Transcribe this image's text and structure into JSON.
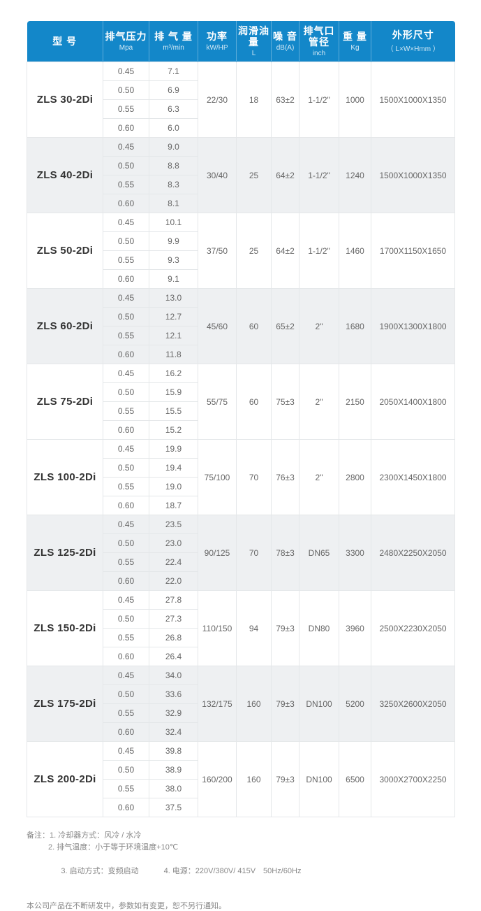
{
  "table": {
    "columns": [
      {
        "key": "model",
        "label": "型 号",
        "sub": ""
      },
      {
        "key": "pressure",
        "label": "排气压力",
        "sub": "Mpa"
      },
      {
        "key": "displacement",
        "label": "排 气 量",
        "sub": "m³/min"
      },
      {
        "key": "power",
        "label": "功率",
        "sub": "kW/HP"
      },
      {
        "key": "oil",
        "label": "润滑油量",
        "sub": "L"
      },
      {
        "key": "noise",
        "label": "噪 音",
        "sub": "dB(A)"
      },
      {
        "key": "port",
        "label": "排气口管径",
        "sub": "inch"
      },
      {
        "key": "weight",
        "label": "重 量",
        "sub": "Kg"
      },
      {
        "key": "dims",
        "label": "外形尺寸",
        "sub": "（ L×W×Hmm ）"
      }
    ],
    "rows": [
      {
        "model": "ZLS 30-2Di",
        "shaded": false,
        "pressures": [
          "0.45",
          "0.50",
          "0.55",
          "0.60"
        ],
        "displacements": [
          "7.1",
          "6.9",
          "6.3",
          "6.0"
        ],
        "power": "22/30",
        "oil": "18",
        "noise": "63±2",
        "port": "1-1/2\"",
        "weight": "1000",
        "dims": "1500X1000X1350"
      },
      {
        "model": "ZLS 40-2Di",
        "shaded": true,
        "pressures": [
          "0.45",
          "0.50",
          "0.55",
          "0.60"
        ],
        "displacements": [
          "9.0",
          "8.8",
          "8.3",
          "8.1"
        ],
        "power": "30/40",
        "oil": "25",
        "noise": "64±2",
        "port": "1-1/2\"",
        "weight": "1240",
        "dims": "1500X1000X1350"
      },
      {
        "model": "ZLS 50-2Di",
        "shaded": false,
        "pressures": [
          "0.45",
          "0.50",
          "0.55",
          "0.60"
        ],
        "displacements": [
          "10.1",
          "9.9",
          "9.3",
          "9.1"
        ],
        "power": "37/50",
        "oil": "25",
        "noise": "64±2",
        "port": "1-1/2\"",
        "weight": "1460",
        "dims": "1700X1150X1650"
      },
      {
        "model": "ZLS 60-2Di",
        "shaded": true,
        "pressures": [
          "0.45",
          "0.50",
          "0.55",
          "0.60"
        ],
        "displacements": [
          "13.0",
          "12.7",
          "12.1",
          "11.8"
        ],
        "power": "45/60",
        "oil": "60",
        "noise": "65±2",
        "port": "2\"",
        "weight": "1680",
        "dims": "1900X1300X1800"
      },
      {
        "model": "ZLS 75-2Di",
        "shaded": false,
        "pressures": [
          "0.45",
          "0.50",
          "0.55",
          "0.60"
        ],
        "displacements": [
          "16.2",
          "15.9",
          "15.5",
          "15.2"
        ],
        "power": "55/75",
        "oil": "60",
        "noise": "75±3",
        "port": "2\"",
        "weight": "2150",
        "dims": "2050X1400X1800"
      },
      {
        "model": "ZLS 100-2Di",
        "shaded": false,
        "pressures": [
          "0.45",
          "0.50",
          "0.55",
          "0.60"
        ],
        "displacements": [
          "19.9",
          "19.4",
          "19.0",
          "18.7"
        ],
        "power": "75/100",
        "oil": "70",
        "noise": "76±3",
        "port": "2\"",
        "weight": "2800",
        "dims": "2300X1450X1800"
      },
      {
        "model": "ZLS 125-2Di",
        "shaded": true,
        "pressures": [
          "0.45",
          "0.50",
          "0.55",
          "0.60"
        ],
        "displacements": [
          "23.5",
          "23.0",
          "22.4",
          "22.0"
        ],
        "power": "90/125",
        "oil": "70",
        "noise": "78±3",
        "port": "DN65",
        "weight": "3300",
        "dims": "2480X2250X2050"
      },
      {
        "model": "ZLS 150-2Di",
        "shaded": false,
        "pressures": [
          "0.45",
          "0.50",
          "0.55",
          "0.60"
        ],
        "displacements": [
          "27.8",
          "27.3",
          "26.8",
          "26.4"
        ],
        "power": "110/150",
        "oil": "94",
        "noise": "79±3",
        "port": "DN80",
        "weight": "3960",
        "dims": "2500X2230X2050"
      },
      {
        "model": "ZLS 175-2Di",
        "shaded": true,
        "pressures": [
          "0.45",
          "0.50",
          "0.55",
          "0.60"
        ],
        "displacements": [
          "34.0",
          "33.6",
          "32.9",
          "32.4"
        ],
        "power": "132/175",
        "oil": "160",
        "noise": "79±3",
        "port": "DN100",
        "weight": "5200",
        "dims": "3250X2600X2050"
      },
      {
        "model": "ZLS 200-2Di",
        "shaded": false,
        "pressures": [
          "0.45",
          "0.50",
          "0.55",
          "0.60"
        ],
        "displacements": [
          "39.8",
          "38.9",
          "38.0",
          "37.5"
        ],
        "power": "160/200",
        "oil": "160",
        "noise": "79±3",
        "port": "DN100",
        "weight": "6500",
        "dims": "3000X2700X2250"
      }
    ]
  },
  "colors": {
    "header_blue": "#1387c9",
    "shaded_row": "#eef0f2",
    "grid_line": "#e4e7e9"
  },
  "notes": {
    "line1": "备注：1. 冷却器方式：风冷 / 水冷",
    "line2": "2. 排气温度：小于等于环境温度+10℃",
    "line3a": "3. 启动方式：变频启动",
    "line3b": "4. 电源：220V/380V/ 415V　50Hz/60Hz",
    "disclaimer": "本公司产品在不断研发中，参数如有变更，恕不另行通知。"
  }
}
